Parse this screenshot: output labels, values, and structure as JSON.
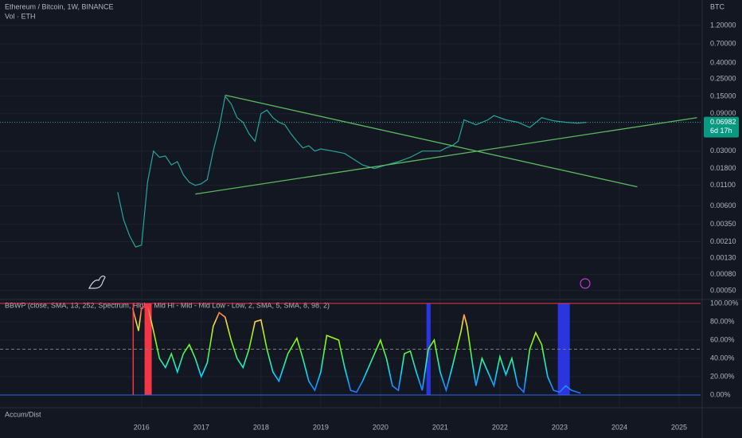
{
  "chart_data": [
    {
      "type": "line",
      "title": "Ethereum / Bitcoin, 1W, BINANCE",
      "subtitle": "Vol · ETH",
      "y_axis_label": "BTC",
      "log_scale": true,
      "grid": true,
      "color": "#26a69a",
      "x": [
        2015.6,
        2015.7,
        2015.8,
        2015.9,
        2016.0,
        2016.1,
        2016.2,
        2016.3,
        2016.4,
        2016.5,
        2016.6,
        2016.7,
        2016.8,
        2016.9,
        2017.0,
        2017.1,
        2017.2,
        2017.3,
        2017.4,
        2017.5,
        2017.6,
        2017.7,
        2017.8,
        2017.9,
        2018.0,
        2018.1,
        2018.2,
        2018.3,
        2018.4,
        2018.5,
        2018.6,
        2018.7,
        2018.8,
        2018.9,
        2019.0,
        2019.2,
        2019.4,
        2019.5,
        2019.7,
        2019.9,
        2020.1,
        2020.3,
        2020.5,
        2020.7,
        2020.9,
        2021.0,
        2021.1,
        2021.2,
        2021.3,
        2021.4,
        2021.6,
        2021.8,
        2021.9,
        2022.1,
        2022.3,
        2022.5,
        2022.7,
        2022.9,
        2023.1,
        2023.3,
        2023.45
      ],
      "values": [
        0.009,
        0.004,
        0.0025,
        0.0018,
        0.0019,
        0.012,
        0.03,
        0.025,
        0.026,
        0.02,
        0.022,
        0.015,
        0.012,
        0.011,
        0.0115,
        0.013,
        0.03,
        0.06,
        0.15,
        0.12,
        0.08,
        0.07,
        0.05,
        0.04,
        0.09,
        0.1,
        0.08,
        0.07,
        0.065,
        0.05,
        0.04,
        0.033,
        0.035,
        0.03,
        0.032,
        0.03,
        0.028,
        0.025,
        0.02,
        0.018,
        0.02,
        0.022,
        0.025,
        0.03,
        0.03,
        0.03,
        0.033,
        0.035,
        0.04,
        0.075,
        0.065,
        0.075,
        0.085,
        0.075,
        0.07,
        0.06,
        0.08,
        0.073,
        0.07,
        0.068,
        0.06982
      ],
      "current_price": 0.06982,
      "countdown": "6d 17h",
      "trendlines": [
        {
          "x": [
            2017.4,
            2024.3
          ],
          "values": [
            0.155,
            0.0105
          ],
          "color": "#5ab85c"
        },
        {
          "x": [
            2016.9,
            2025.3
          ],
          "values": [
            0.0085,
            0.08
          ],
          "color": "#5ab85c"
        }
      ],
      "xlim": [
        2013.63,
        2025.36
      ],
      "ylim": [
        0.000395,
        2.53
      ],
      "xticks": [
        2016,
        2017,
        2018,
        2019,
        2020,
        2021,
        2022,
        2023,
        2024,
        2025
      ],
      "yticks": [
        {
          "value": 1.2,
          "label": "1.20000"
        },
        {
          "value": 0.7,
          "label": "0.70000"
        },
        {
          "value": 0.4,
          "label": "0.40000"
        },
        {
          "value": 0.25,
          "label": "0.25000"
        },
        {
          "value": 0.15,
          "label": "0.15000"
        },
        {
          "value": 0.09,
          "label": "0.09000"
        },
        {
          "value": 0.03,
          "label": "0.03000"
        },
        {
          "value": 0.018,
          "label": "0.01800"
        },
        {
          "value": 0.011,
          "label": "0.01100"
        },
        {
          "value": 0.006,
          "label": "0.00600"
        },
        {
          "value": 0.0035,
          "label": "0.00350"
        },
        {
          "value": 0.0021,
          "label": "0.00210"
        },
        {
          "value": 0.0013,
          "label": "0.00130"
        },
        {
          "value": 0.0008,
          "label": "0.00080"
        },
        {
          "value": 0.0005,
          "label": "0.00050"
        }
      ]
    },
    {
      "type": "line",
      "title": "BBWP (close, SMA, 13, 252, Spectrum, High - Mid Hi - Mid - Mid Low - Low, 2, SMA, 5, SMA, 8, 98, 2)",
      "x": [
        2015.85,
        2015.95,
        2016.0,
        2016.1,
        2016.2,
        2016.3,
        2016.4,
        2016.5,
        2016.6,
        2016.7,
        2016.8,
        2016.9,
        2017.0,
        2017.1,
        2017.2,
        2017.3,
        2017.4,
        2017.5,
        2017.6,
        2017.7,
        2017.8,
        2017.9,
        2018.0,
        2018.1,
        2018.2,
        2018.3,
        2018.45,
        2018.6,
        2018.7,
        2018.8,
        2018.9,
        2019.0,
        2019.1,
        2019.3,
        2019.4,
        2019.5,
        2019.6,
        2019.7,
        2019.9,
        2020.0,
        2020.1,
        2020.2,
        2020.3,
        2020.4,
        2020.5,
        2020.6,
        2020.7,
        2020.8,
        2020.9,
        2021.0,
        2021.1,
        2021.2,
        2021.35,
        2021.4,
        2021.45,
        2021.55,
        2021.6,
        2021.7,
        2021.8,
        2021.9,
        2022.0,
        2022.1,
        2022.2,
        2022.3,
        2022.4,
        2022.5,
        2022.6,
        2022.7,
        2022.8,
        2022.9,
        2023.0,
        2023.1,
        2023.2,
        2023.3,
        2023.35
      ],
      "values": [
        95,
        70,
        95,
        98,
        70,
        40,
        30,
        45,
        25,
        45,
        55,
        40,
        20,
        35,
        75,
        90,
        85,
        60,
        40,
        30,
        50,
        80,
        82,
        50,
        25,
        15,
        45,
        62,
        40,
        15,
        5,
        25,
        65,
        60,
        30,
        5,
        3,
        15,
        45,
        60,
        40,
        10,
        5,
        45,
        48,
        25,
        5,
        50,
        60,
        25,
        5,
        30,
        70,
        88,
        75,
        30,
        10,
        40,
        25,
        10,
        42,
        22,
        40,
        10,
        3,
        50,
        68,
        55,
        20,
        5,
        3,
        10,
        5,
        3,
        2
      ],
      "extreme_high_weeks": [
        [
          2015.85,
          2015.87
        ],
        [
          2016.05,
          2016.17
        ]
      ],
      "extreme_low_weeks": [
        [
          2020.77,
          2020.84
        ],
        [
          2022.97,
          2023.17
        ]
      ],
      "xlim": [
        2013.63,
        2025.36
      ],
      "ylim": [
        -12.2,
        102.6
      ],
      "yticks": [
        {
          "value": 100,
          "label": "100.00%"
        },
        {
          "value": 80,
          "label": "80.00%"
        },
        {
          "value": 60,
          "label": "60.00%"
        },
        {
          "value": 40,
          "label": "40.00%"
        },
        {
          "value": 20,
          "label": "20.00%"
        },
        {
          "value": 0,
          "label": "0.00%"
        }
      ],
      "hlines": [
        {
          "value": 100,
          "color": "#f23645"
        },
        {
          "value": 50,
          "color": "#787b86"
        },
        {
          "value": 0,
          "color": "#2962ff"
        }
      ]
    },
    {
      "type": "indicator",
      "title": "Accum/Dist"
    }
  ]
}
